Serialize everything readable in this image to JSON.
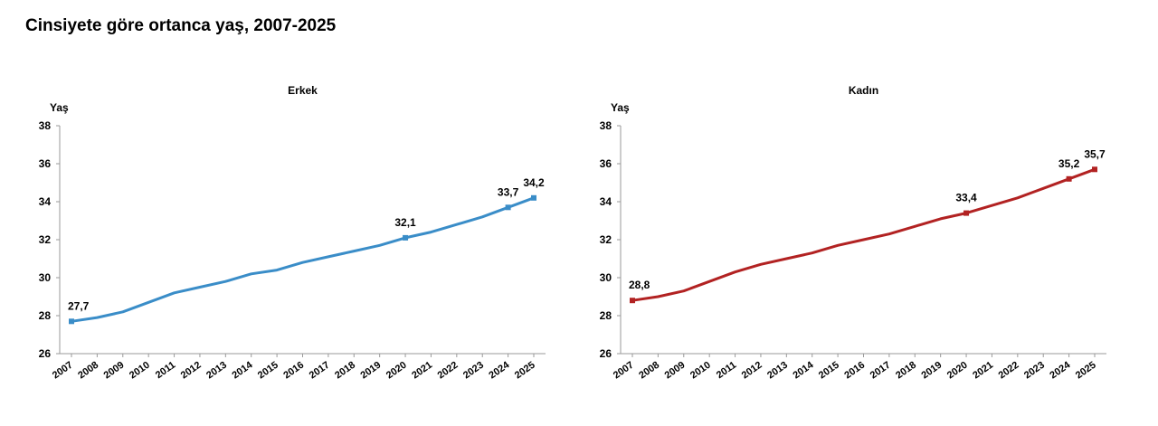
{
  "page_title": "Cinsiyete göre ortanca yaş, 2007-2025",
  "chart_data": [
    {
      "type": "line",
      "title": "Erkek",
      "ylabel": "Yaş",
      "xlabel": "",
      "color": "#3a8dc8",
      "ylim": [
        26,
        38
      ],
      "yticks": [
        26,
        28,
        30,
        32,
        34,
        36,
        38
      ],
      "x": [
        "2007",
        "2008",
        "2009",
        "2010",
        "2011",
        "2012",
        "2013",
        "2014",
        "2015",
        "2016",
        "2017",
        "2018",
        "2019",
        "2020",
        "2021",
        "2022",
        "2023",
        "2024",
        "2025"
      ],
      "values": [
        27.7,
        27.9,
        28.2,
        28.7,
        29.2,
        29.5,
        29.8,
        30.2,
        30.4,
        30.8,
        31.1,
        31.4,
        31.7,
        32.1,
        32.4,
        32.8,
        33.2,
        33.7,
        34.2
      ],
      "labels": [
        {
          "year": "2007",
          "text": "27,7"
        },
        {
          "year": "2020",
          "text": "32,1"
        },
        {
          "year": "2024",
          "text": "33,7"
        },
        {
          "year": "2025",
          "text": "34,2"
        }
      ]
    },
    {
      "type": "line",
      "title": "Kadın",
      "ylabel": "Yaş",
      "xlabel": "",
      "color": "#b22222",
      "ylim": [
        26,
        38
      ],
      "yticks": [
        26,
        28,
        30,
        32,
        34,
        36,
        38
      ],
      "x": [
        "2007",
        "2008",
        "2009",
        "2010",
        "2011",
        "2012",
        "2013",
        "2014",
        "2015",
        "2016",
        "2017",
        "2018",
        "2019",
        "2020",
        "2021",
        "2022",
        "2023",
        "2024",
        "2025"
      ],
      "values": [
        28.8,
        29.0,
        29.3,
        29.8,
        30.3,
        30.7,
        31.0,
        31.3,
        31.7,
        32.0,
        32.3,
        32.7,
        33.1,
        33.4,
        33.8,
        34.2,
        34.7,
        35.2,
        35.7
      ],
      "labels": [
        {
          "year": "2007",
          "text": "28,8"
        },
        {
          "year": "2020",
          "text": "33,4"
        },
        {
          "year": "2024",
          "text": "35,2"
        },
        {
          "year": "2025",
          "text": "35,7"
        }
      ]
    }
  ]
}
